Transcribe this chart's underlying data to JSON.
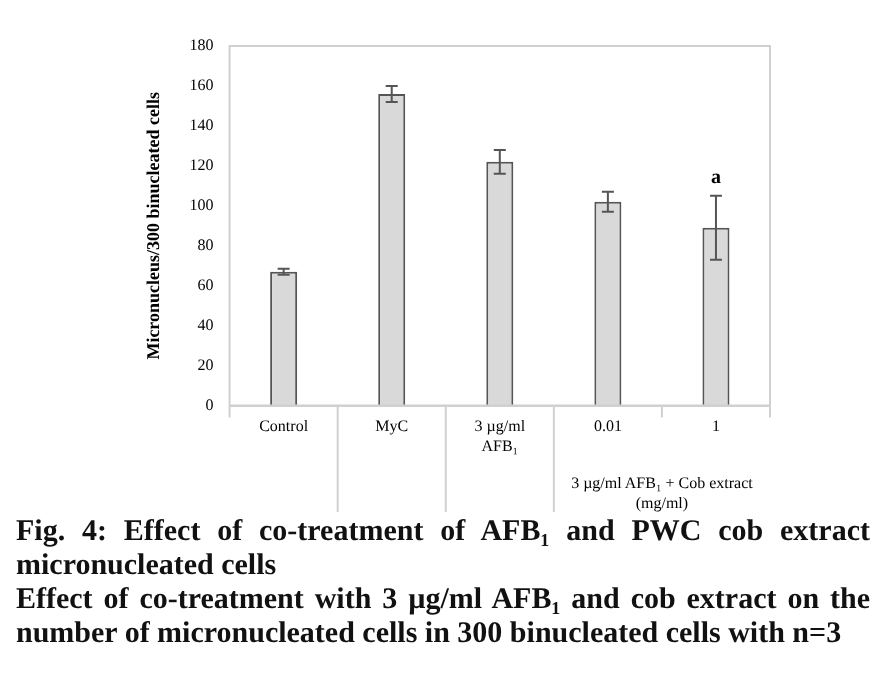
{
  "chart_data": {
    "type": "bar",
    "title": "Fig. 4: Effect of co-treatment of AFB₁ and PWC cob extract micronucleated cells",
    "subtitle": "Effect of co-treatment with 3 µg/ml AFB₁ and cob extract on the number of micronucleated cells in 300 binucleated cells with n=3",
    "ylabel": "Micronucleus/300 binucleated cells",
    "categories": [
      "Control",
      "MyC",
      "3 µg/ml AFB₁",
      "0.01",
      "1"
    ],
    "values": [
      67,
      156,
      122,
      102,
      89
    ],
    "errors": [
      1.5,
      4,
      6,
      5,
      16
    ],
    "color": "#d9d9d9",
    "ylim": [
      0,
      180
    ],
    "yticks": [
      0,
      20,
      40,
      60,
      80,
      100,
      120,
      140,
      160,
      180
    ],
    "grid": false,
    "legend": false,
    "annotations": [
      "3 µg/ml AFB₁ + Cob extract (mg/ml)",
      {
        "text": "a",
        "x": "1",
        "y": 105
      }
    ]
  }
}
